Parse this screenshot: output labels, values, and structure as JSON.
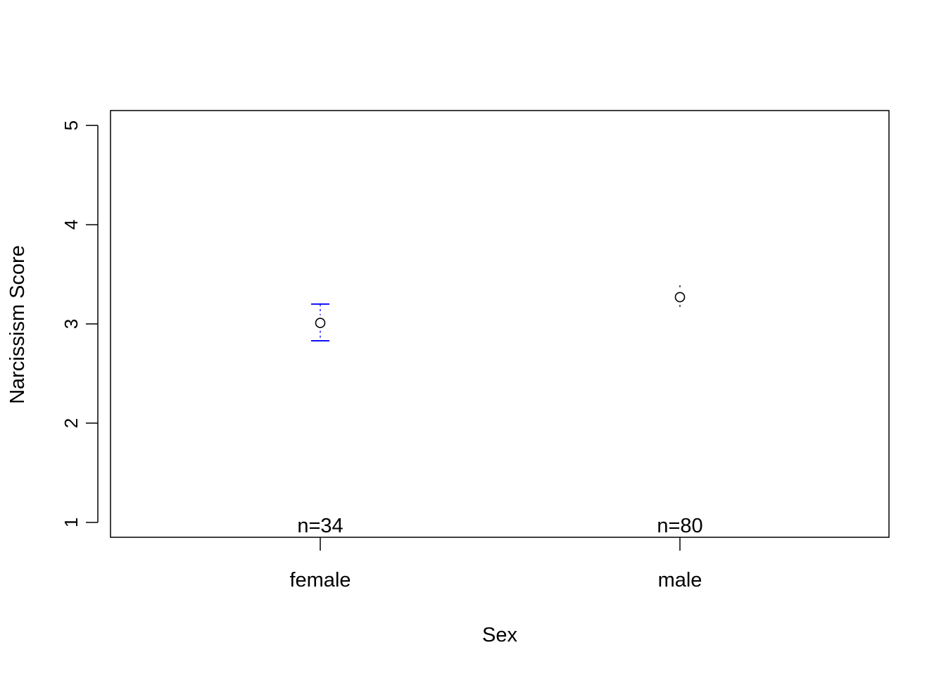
{
  "chart_data": {
    "type": "scatter",
    "title": "",
    "xlabel": "Sex",
    "ylabel": "Narcissism Score",
    "categories": [
      "female",
      "male"
    ],
    "n_labels": [
      "n=34",
      "n=80"
    ],
    "ylim": [
      0.85,
      5.15
    ],
    "y_ticks": [
      "1",
      "2",
      "3",
      "4",
      "5"
    ],
    "grid": false,
    "series": [
      {
        "mean": [
          3.01,
          3.27
        ],
        "ci_lower": [
          2.83,
          3.16
        ],
        "ci_upper": [
          3.2,
          3.39
        ]
      }
    ],
    "colors": {
      "ci_female": "#0000ff",
      "ci_male": "#000000",
      "point": "#000000"
    }
  }
}
